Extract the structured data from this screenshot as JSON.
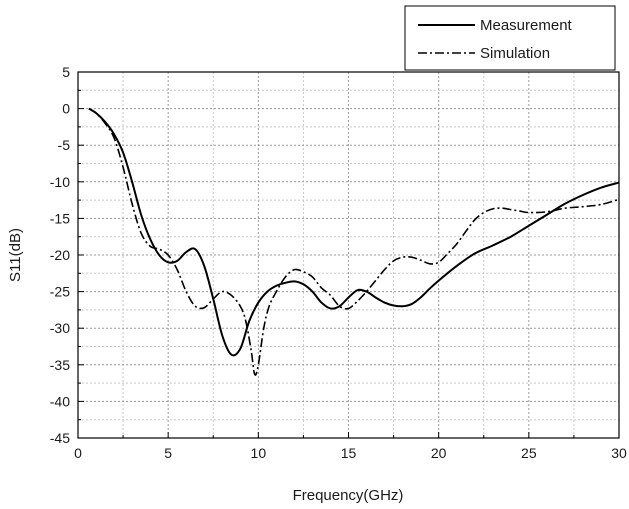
{
  "chart_data": {
    "type": "line",
    "xlabel": "Frequency(GHz)",
    "ylabel": "S11(dB)",
    "xlim": [
      0,
      30
    ],
    "ylim": [
      -45,
      5
    ],
    "x_ticks": [
      "0",
      "5",
      "10",
      "15",
      "20",
      "25",
      "30"
    ],
    "y_ticks": [
      "5",
      "0",
      "-5",
      "-10",
      "-15",
      "-20",
      "-25",
      "-30",
      "-35",
      "-40",
      "-45"
    ],
    "grid": true,
    "legend_position": "top-right, outside above plot",
    "series": [
      {
        "name": "Measurement",
        "style": "solid",
        "color": "#000000",
        "x": [
          0.6,
          1.0,
          1.5,
          2.0,
          2.5,
          3.0,
          3.5,
          4.0,
          4.5,
          5.0,
          5.5,
          6.0,
          6.5,
          7.0,
          7.5,
          8.0,
          8.5,
          9.0,
          9.5,
          10.0,
          10.5,
          11.0,
          11.5,
          12.0,
          12.5,
          13.0,
          13.5,
          14.0,
          14.5,
          15.0,
          15.5,
          16.0,
          16.5,
          17.0,
          17.5,
          18.0,
          18.5,
          19.0,
          19.5,
          20.0,
          21.0,
          22.0,
          23.0,
          24.0,
          25.0,
          26.0,
          27.0,
          28.0,
          29.0,
          30.0
        ],
        "y": [
          0.0,
          -0.6,
          -1.8,
          -3.5,
          -6.0,
          -10.0,
          -14.5,
          -17.8,
          -20.0,
          -21.0,
          -20.8,
          -19.6,
          -19.2,
          -21.5,
          -26.0,
          -31.0,
          -33.6,
          -32.8,
          -29.0,
          -26.5,
          -25.0,
          -24.2,
          -23.8,
          -23.6,
          -24.0,
          -25.0,
          -26.5,
          -27.3,
          -27.0,
          -25.8,
          -24.8,
          -25.0,
          -25.8,
          -26.5,
          -26.9,
          -27.0,
          -26.7,
          -25.8,
          -24.6,
          -23.5,
          -21.5,
          -19.8,
          -18.7,
          -17.5,
          -16.0,
          -14.5,
          -13.0,
          -11.8,
          -10.8,
          -10.1
        ]
      },
      {
        "name": "Simulation",
        "style": "dash-dot",
        "color": "#000000",
        "x": [
          0.6,
          1.0,
          1.5,
          2.0,
          2.5,
          3.0,
          3.5,
          4.0,
          4.5,
          5.0,
          5.5,
          6.0,
          6.5,
          7.0,
          7.5,
          8.0,
          8.5,
          9.0,
          9.3,
          9.6,
          9.8,
          10.0,
          10.3,
          10.6,
          11.0,
          11.5,
          12.0,
          12.5,
          13.0,
          13.5,
          14.0,
          14.5,
          15.0,
          15.5,
          16.0,
          16.5,
          17.0,
          17.5,
          18.0,
          18.5,
          19.0,
          19.5,
          20.0,
          20.5,
          21.0,
          21.5,
          22.0,
          22.5,
          23.0,
          23.5,
          24.0,
          24.5,
          25.0,
          26.0,
          27.0,
          28.0,
          29.0,
          30.0
        ],
        "y": [
          0.0,
          -0.6,
          -2.0,
          -4.0,
          -8.0,
          -13.0,
          -17.0,
          -18.8,
          -19.2,
          -20.0,
          -22.0,
          -25.0,
          -27.0,
          -27.2,
          -26.0,
          -25.0,
          -25.5,
          -27.0,
          -29.0,
          -33.0,
          -36.3,
          -35.0,
          -30.0,
          -27.0,
          -25.0,
          -23.0,
          -22.0,
          -22.3,
          -23.0,
          -24.5,
          -25.5,
          -27.0,
          -27.3,
          -26.3,
          -25.0,
          -23.5,
          -22.0,
          -20.8,
          -20.3,
          -20.3,
          -20.7,
          -21.2,
          -21.0,
          -19.8,
          -18.5,
          -16.8,
          -15.2,
          -14.2,
          -13.7,
          -13.6,
          -13.8,
          -14.0,
          -14.2,
          -14.1,
          -13.6,
          -13.4,
          -13.1,
          -12.4
        ]
      }
    ]
  }
}
